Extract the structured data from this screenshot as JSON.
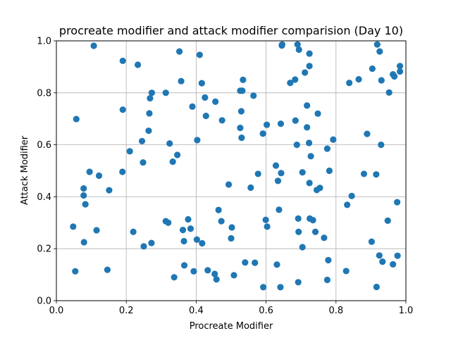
{
  "chart_data": {
    "type": "scatter",
    "title": "procreate modifier and attack modifier comparision (Day 10)",
    "xlabel": "Procreate Modifier",
    "ylabel": "Attack Modifier",
    "xlim": [
      0.0,
      1.0
    ],
    "ylim": [
      0.0,
      1.0
    ],
    "x_ticks": [
      "0.0",
      "0.2",
      "0.4",
      "0.6",
      "0.8",
      "1.0"
    ],
    "y_ticks": [
      "0.0",
      "0.2",
      "0.4",
      "0.6",
      "0.8",
      "1.0"
    ],
    "grid": true,
    "point_color": "#1f77b4",
    "points": [
      [
        0.107,
        0.981
      ],
      [
        0.19,
        0.923
      ],
      [
        0.233,
        0.908
      ],
      [
        0.352,
        0.959
      ],
      [
        0.41,
        0.946
      ],
      [
        0.645,
        0.982
      ],
      [
        0.646,
        0.986
      ],
      [
        0.69,
        0.986
      ],
      [
        0.694,
        0.966
      ],
      [
        0.724,
        0.951
      ],
      [
        0.918,
        0.986
      ],
      [
        0.925,
        0.959
      ],
      [
        0.904,
        0.893
      ],
      [
        0.983,
        0.903
      ],
      [
        0.963,
        0.871
      ],
      [
        0.967,
        0.863
      ],
      [
        0.983,
        0.882
      ],
      [
        0.724,
        0.903
      ],
      [
        0.711,
        0.878
      ],
      [
        0.357,
        0.845
      ],
      [
        0.416,
        0.837
      ],
      [
        0.534,
        0.85
      ],
      [
        0.683,
        0.851
      ],
      [
        0.669,
        0.838
      ],
      [
        0.838,
        0.838
      ],
      [
        0.865,
        0.852
      ],
      [
        0.93,
        0.848
      ],
      [
        0.952,
        0.801
      ],
      [
        0.273,
        0.8
      ],
      [
        0.313,
        0.8
      ],
      [
        0.268,
        0.779
      ],
      [
        0.425,
        0.782
      ],
      [
        0.455,
        0.766
      ],
      [
        0.526,
        0.808
      ],
      [
        0.532,
        0.808
      ],
      [
        0.564,
        0.789
      ],
      [
        0.19,
        0.735
      ],
      [
        0.266,
        0.721
      ],
      [
        0.389,
        0.747
      ],
      [
        0.428,
        0.711
      ],
      [
        0.529,
        0.729
      ],
      [
        0.474,
        0.694
      ],
      [
        0.717,
        0.751
      ],
      [
        0.748,
        0.72
      ],
      [
        0.057,
        0.699
      ],
      [
        0.264,
        0.654
      ],
      [
        0.245,
        0.614
      ],
      [
        0.324,
        0.605
      ],
      [
        0.403,
        0.618
      ],
      [
        0.526,
        0.665
      ],
      [
        0.53,
        0.627
      ],
      [
        0.602,
        0.677
      ],
      [
        0.591,
        0.643
      ],
      [
        0.642,
        0.681
      ],
      [
        0.684,
        0.693
      ],
      [
        0.717,
        0.667
      ],
      [
        0.688,
        0.6
      ],
      [
        0.723,
        0.607
      ],
      [
        0.775,
        0.585
      ],
      [
        0.792,
        0.62
      ],
      [
        0.889,
        0.642
      ],
      [
        0.929,
        0.6
      ],
      [
        0.21,
        0.575
      ],
      [
        0.248,
        0.532
      ],
      [
        0.333,
        0.535
      ],
      [
        0.346,
        0.561
      ],
      [
        0.095,
        0.496
      ],
      [
        0.122,
        0.481
      ],
      [
        0.189,
        0.496
      ],
      [
        0.493,
        0.447
      ],
      [
        0.556,
        0.435
      ],
      [
        0.577,
        0.488
      ],
      [
        0.628,
        0.52
      ],
      [
        0.634,
        0.461
      ],
      [
        0.643,
        0.491
      ],
      [
        0.704,
        0.494
      ],
      [
        0.724,
        0.453
      ],
      [
        0.728,
        0.556
      ],
      [
        0.745,
        0.426
      ],
      [
        0.754,
        0.434
      ],
      [
        0.781,
        0.5
      ],
      [
        0.88,
        0.488
      ],
      [
        0.915,
        0.486
      ],
      [
        0.078,
        0.432
      ],
      [
        0.078,
        0.405
      ],
      [
        0.083,
        0.371
      ],
      [
        0.151,
        0.425
      ],
      [
        0.832,
        0.369
      ],
      [
        0.845,
        0.403
      ],
      [
        0.975,
        0.379
      ],
      [
        0.048,
        0.285
      ],
      [
        0.079,
        0.225
      ],
      [
        0.115,
        0.271
      ],
      [
        0.22,
        0.265
      ],
      [
        0.25,
        0.209
      ],
      [
        0.272,
        0.222
      ],
      [
        0.313,
        0.306
      ],
      [
        0.32,
        0.3
      ],
      [
        0.362,
        0.272
      ],
      [
        0.365,
        0.229
      ],
      [
        0.377,
        0.313
      ],
      [
        0.384,
        0.277
      ],
      [
        0.402,
        0.235
      ],
      [
        0.417,
        0.221
      ],
      [
        0.464,
        0.349
      ],
      [
        0.472,
        0.306
      ],
      [
        0.5,
        0.24
      ],
      [
        0.502,
        0.282
      ],
      [
        0.599,
        0.311
      ],
      [
        0.603,
        0.285
      ],
      [
        0.637,
        0.35
      ],
      [
        0.692,
        0.316
      ],
      [
        0.693,
        0.265
      ],
      [
        0.704,
        0.206
      ],
      [
        0.725,
        0.316
      ],
      [
        0.734,
        0.31
      ],
      [
        0.741,
        0.265
      ],
      [
        0.766,
        0.242
      ],
      [
        0.902,
        0.227
      ],
      [
        0.948,
        0.308
      ],
      [
        0.054,
        0.113
      ],
      [
        0.146,
        0.119
      ],
      [
        0.337,
        0.09
      ],
      [
        0.366,
        0.136
      ],
      [
        0.393,
        0.113
      ],
      [
        0.433,
        0.117
      ],
      [
        0.453,
        0.103
      ],
      [
        0.458,
        0.082
      ],
      [
        0.508,
        0.098
      ],
      [
        0.54,
        0.147
      ],
      [
        0.568,
        0.146
      ],
      [
        0.592,
        0.052
      ],
      [
        0.631,
        0.139
      ],
      [
        0.641,
        0.052
      ],
      [
        0.692,
        0.071
      ],
      [
        0.775,
        0.08
      ],
      [
        0.778,
        0.156
      ],
      [
        0.829,
        0.114
      ],
      [
        0.916,
        0.053
      ],
      [
        0.924,
        0.174
      ],
      [
        0.933,
        0.15
      ],
      [
        0.963,
        0.14
      ],
      [
        0.976,
        0.173
      ]
    ]
  }
}
